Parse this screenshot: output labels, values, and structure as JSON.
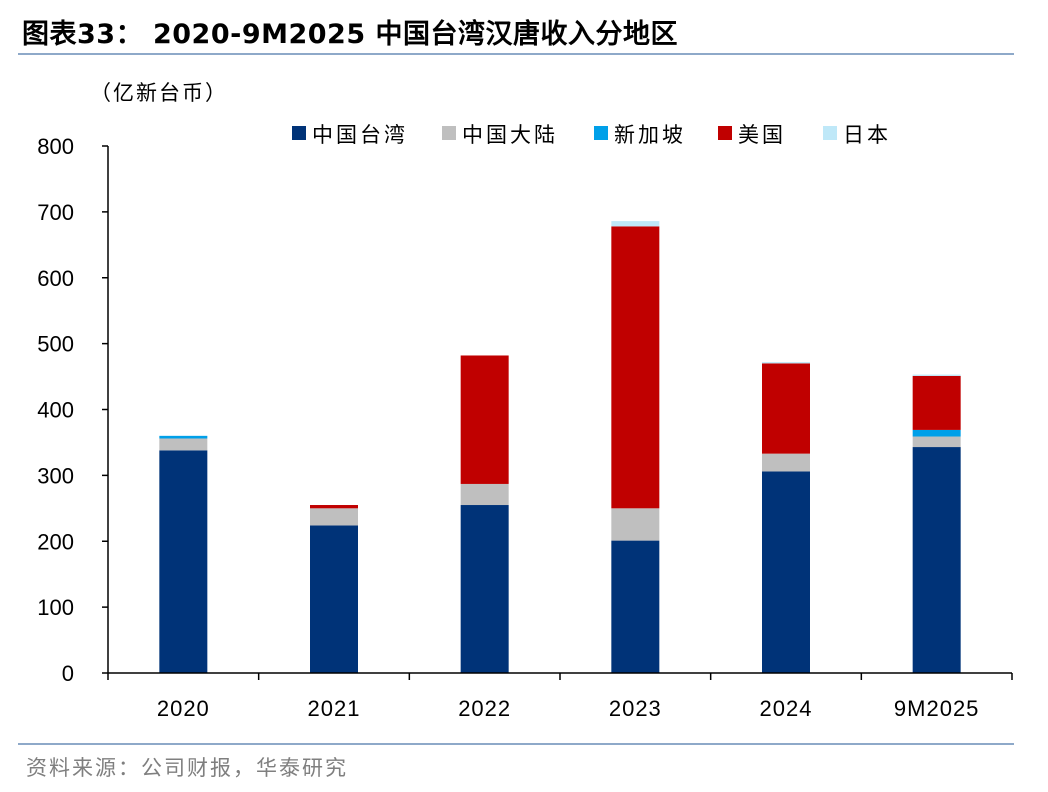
{
  "title": "图表33：  2020-9M2025 中国台湾汉唐收入分地区",
  "source": "资料来源：公司财报，华泰研究",
  "chart_data": {
    "type": "bar",
    "stacked": true,
    "unit_label": "（亿新台币）",
    "categories": [
      "2020",
      "2021",
      "2022",
      "2023",
      "2024",
      "9M2025"
    ],
    "ylim": [
      0,
      800
    ],
    "yticks": [
      "0",
      "100",
      "200",
      "300",
      "400",
      "500",
      "600",
      "700",
      "800"
    ],
    "legend_position": "top",
    "grid": false,
    "series": [
      {
        "name": "中国台湾",
        "color": "#003378",
        "values": [
          338,
          224,
          255,
          201,
          306,
          343
        ]
      },
      {
        "name": "中国大陆",
        "color": "#bfbfbf",
        "values": [
          18,
          26,
          32,
          49,
          27,
          16
        ]
      },
      {
        "name": "新加坡",
        "color": "#00a0e9",
        "values": [
          4,
          0,
          0,
          0,
          0,
          10
        ]
      },
      {
        "name": "美国",
        "color": "#c00000",
        "values": [
          0,
          5,
          195,
          428,
          137,
          82
        ]
      },
      {
        "name": "日本",
        "color": "#bfe8f8",
        "values": [
          0,
          0,
          0,
          8,
          2,
          2
        ]
      }
    ]
  }
}
